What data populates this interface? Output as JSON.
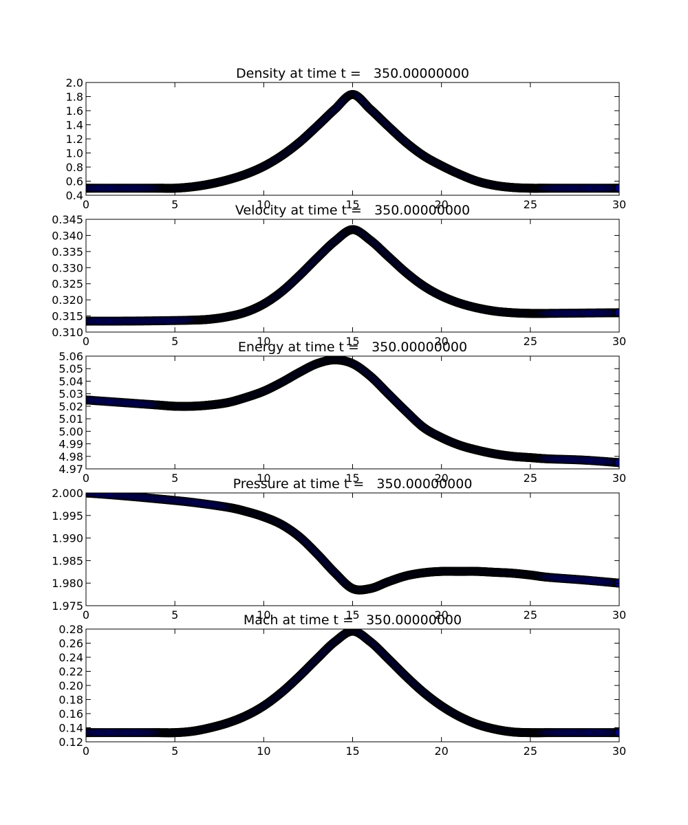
{
  "chart_data": [
    {
      "type": "scatter",
      "title": "Density at time t =   350.00000000",
      "xlim": [
        0,
        30
      ],
      "ylim": [
        0.4,
        2.0
      ],
      "xticks": [
        0,
        5,
        10,
        15,
        20,
        25,
        30
      ],
      "yticks": [
        0.4,
        0.6,
        0.8,
        1.0,
        1.2,
        1.4,
        1.6,
        1.8,
        2.0
      ],
      "ytick_labels": [
        "0.4",
        "0.6",
        "0.8",
        "1.0",
        "1.2",
        "1.4",
        "1.6",
        "1.8",
        "2.0"
      ],
      "x": [
        0,
        2,
        4,
        5,
        6,
        7,
        8,
        9,
        10,
        11,
        12,
        13,
        14,
        15,
        16,
        17,
        18,
        19,
        20,
        21,
        22,
        23,
        24,
        25,
        26,
        28,
        30
      ],
      "y": [
        0.5,
        0.5,
        0.5,
        0.5,
        0.52,
        0.56,
        0.62,
        0.7,
        0.81,
        0.96,
        1.15,
        1.38,
        1.62,
        1.83,
        1.62,
        1.38,
        1.15,
        0.96,
        0.82,
        0.7,
        0.6,
        0.54,
        0.51,
        0.5,
        0.5,
        0.5,
        0.5
      ]
    },
    {
      "type": "scatter",
      "title": "Velocity at time t =   350.00000000",
      "xlim": [
        0,
        30
      ],
      "ylim": [
        0.31,
        0.345
      ],
      "xticks": [
        0,
        5,
        10,
        15,
        20,
        25,
        30
      ],
      "yticks": [
        0.31,
        0.315,
        0.32,
        0.325,
        0.33,
        0.335,
        0.34,
        0.345
      ],
      "ytick_labels": [
        "0.310",
        "0.315",
        "0.320",
        "0.325",
        "0.330",
        "0.335",
        "0.340",
        "0.345"
      ],
      "x": [
        0,
        2,
        4,
        6,
        7,
        8,
        9,
        10,
        11,
        12,
        13,
        14,
        15,
        16,
        17,
        18,
        19,
        20,
        21,
        22,
        23,
        24,
        25,
        26,
        28,
        30
      ],
      "y": [
        0.3134,
        0.3134,
        0.3135,
        0.3137,
        0.314,
        0.3148,
        0.3162,
        0.3187,
        0.3225,
        0.3275,
        0.333,
        0.3382,
        0.3418,
        0.3385,
        0.3335,
        0.3285,
        0.3243,
        0.3212,
        0.319,
        0.3175,
        0.3165,
        0.316,
        0.3158,
        0.3158,
        0.3159,
        0.316
      ]
    },
    {
      "type": "scatter",
      "title": "Energy at time t =   350.00000000",
      "xlim": [
        0,
        30
      ],
      "ylim": [
        4.97,
        5.06
      ],
      "xticks": [
        0,
        5,
        10,
        15,
        20,
        25,
        30
      ],
      "yticks": [
        4.97,
        4.98,
        4.99,
        5.0,
        5.01,
        5.02,
        5.03,
        5.04,
        5.05,
        5.06
      ],
      "ytick_labels": [
        "4.97",
        "4.98",
        "4.99",
        "5.00",
        "5.01",
        "5.02",
        "5.03",
        "5.04",
        "5.05",
        "5.06"
      ],
      "x": [
        0,
        2,
        4,
        5,
        6,
        7,
        8,
        9,
        10,
        11,
        12,
        13,
        14,
        15,
        16,
        17,
        18,
        19,
        20,
        21,
        22,
        23,
        24,
        25,
        26,
        28,
        30
      ],
      "y": [
        5.025,
        5.023,
        5.021,
        5.02,
        5.02,
        5.021,
        5.023,
        5.027,
        5.032,
        5.039,
        5.047,
        5.054,
        5.057,
        5.054,
        5.044,
        5.03,
        5.016,
        5.003,
        4.995,
        4.989,
        4.985,
        4.982,
        4.98,
        4.979,
        4.978,
        4.977,
        4.975
      ]
    },
    {
      "type": "scatter",
      "title": "Pressure at time t =   350.00000000",
      "xlim": [
        0,
        30
      ],
      "ylim": [
        1.975,
        2.0
      ],
      "xticks": [
        0,
        5,
        10,
        15,
        20,
        25,
        30
      ],
      "yticks": [
        1.975,
        1.98,
        1.985,
        1.99,
        1.995,
        2.0
      ],
      "ytick_labels": [
        "1.975",
        "1.980",
        "1.985",
        "1.990",
        "1.995",
        "2.000"
      ],
      "x": [
        0,
        2,
        4,
        6,
        8,
        9,
        10,
        11,
        12,
        13,
        14,
        15,
        16,
        17,
        18,
        19,
        20,
        21,
        22,
        23,
        24,
        25,
        26,
        28,
        30
      ],
      "y": [
        2.0,
        1.9994,
        1.9987,
        1.9979,
        1.9968,
        1.9959,
        1.9947,
        1.993,
        1.9903,
        1.9865,
        1.9823,
        1.9788,
        1.9788,
        1.9803,
        1.9816,
        1.9823,
        1.9826,
        1.9826,
        1.9826,
        1.9824,
        1.9822,
        1.9818,
        1.9813,
        1.9807,
        1.98
      ]
    },
    {
      "type": "scatter",
      "title": "Mach at time t =   350.00000000",
      "xlim": [
        0,
        30
      ],
      "ylim": [
        0.12,
        0.28
      ],
      "xticks": [
        0,
        5,
        10,
        15,
        20,
        25,
        30
      ],
      "yticks": [
        0.12,
        0.14,
        0.16,
        0.18,
        0.2,
        0.22,
        0.24,
        0.26,
        0.28
      ],
      "ytick_labels": [
        "0.12",
        "0.14",
        "0.16",
        "0.18",
        "0.20",
        "0.22",
        "0.24",
        "0.26",
        "0.28"
      ],
      "x": [
        0,
        2,
        4,
        5,
        6,
        7,
        8,
        9,
        10,
        11,
        12,
        13,
        14,
        15,
        16,
        17,
        18,
        19,
        20,
        21,
        22,
        23,
        24,
        25,
        26,
        28,
        30
      ],
      "y": [
        0.133,
        0.133,
        0.133,
        0.133,
        0.135,
        0.14,
        0.147,
        0.157,
        0.171,
        0.19,
        0.213,
        0.238,
        0.262,
        0.277,
        0.262,
        0.238,
        0.213,
        0.19,
        0.171,
        0.156,
        0.145,
        0.138,
        0.134,
        0.133,
        0.133,
        0.133,
        0.133
      ]
    }
  ],
  "colors": {
    "marker_fill": "#00007f",
    "marker_edge": "#000000",
    "axes": "#000000",
    "background": "#ffffff"
  }
}
